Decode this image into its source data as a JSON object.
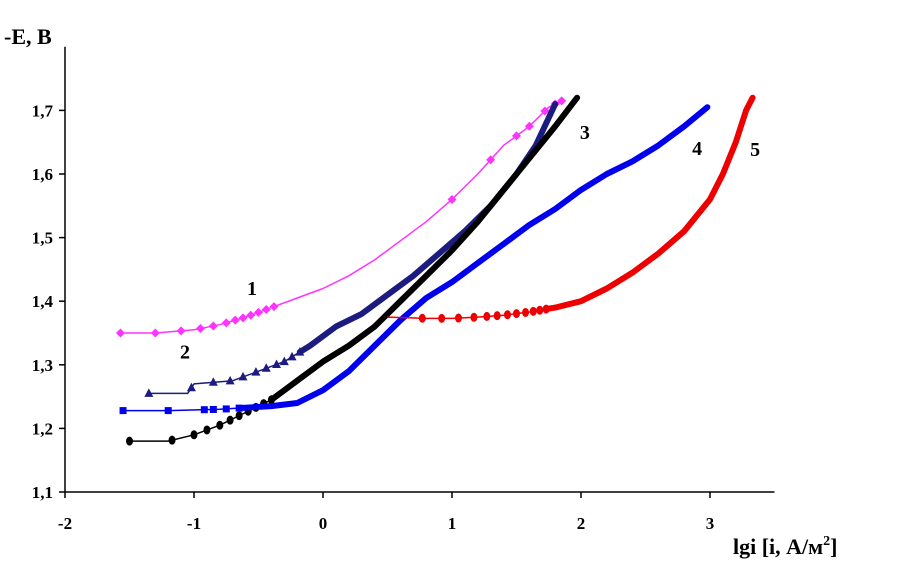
{
  "chart_data": {
    "type": "line",
    "ylabel": "-E, B",
    "xlabel_main": "lgi [i, А/м",
    "xlabel_sup": "2",
    "xlabel_end": "]",
    "xlim": [
      -2,
      3.5
    ],
    "ylim": [
      1.1,
      1.8
    ],
    "xticks": [
      -2,
      -1,
      0,
      1,
      2,
      3
    ],
    "xtick_labels": [
      "-2",
      "-1",
      "0",
      "1",
      "2",
      "3"
    ],
    "yticks": [
      1.1,
      1.2,
      1.3,
      1.4,
      1.5,
      1.6,
      1.7
    ],
    "ytick_labels": [
      "1,1",
      "1,2",
      "1,3",
      "1,4",
      "1,5",
      "1,6",
      "1,7"
    ],
    "grid": false,
    "series": [
      {
        "name": "1",
        "color": "#ff33ff",
        "marker": "diamond",
        "label_at": [
          -0.55,
          1.41
        ],
        "points": [
          [
            -1.57,
            1.35
          ],
          [
            -1.3,
            1.35
          ],
          [
            -1.0,
            1.355
          ],
          [
            -0.8,
            1.363
          ],
          [
            -0.6,
            1.375
          ],
          [
            -0.4,
            1.39
          ],
          [
            -0.2,
            1.405
          ],
          [
            0.0,
            1.42
          ],
          [
            0.2,
            1.44
          ],
          [
            0.4,
            1.465
          ],
          [
            0.6,
            1.495
          ],
          [
            0.8,
            1.525
          ],
          [
            1.0,
            1.56
          ],
          [
            1.2,
            1.6
          ],
          [
            1.4,
            1.645
          ],
          [
            1.6,
            1.675
          ],
          [
            1.75,
            1.705
          ],
          [
            1.85,
            1.715
          ]
        ],
        "marker_x": [
          -1.57,
          -1.3,
          -1.1,
          -0.95,
          -0.85,
          -0.75,
          -0.68,
          -0.62,
          -0.56,
          -0.5,
          -0.44,
          -0.38,
          1.0,
          1.3,
          1.5,
          1.6,
          1.72,
          1.8,
          1.85
        ]
      },
      {
        "name": "2",
        "color": "#1c1c80",
        "marker": "triangle",
        "label_at": [
          -1.07,
          1.31
        ],
        "points": [
          [
            -1.35,
            1.255
          ],
          [
            -1.05,
            1.255
          ],
          [
            -1.0,
            1.27
          ],
          [
            -0.7,
            1.275
          ],
          [
            -0.5,
            1.29
          ],
          [
            -0.3,
            1.305
          ],
          [
            -0.1,
            1.33
          ],
          [
            0.1,
            1.36
          ],
          [
            0.3,
            1.38
          ],
          [
            0.5,
            1.41
          ],
          [
            0.7,
            1.44
          ],
          [
            0.9,
            1.475
          ],
          [
            1.1,
            1.51
          ],
          [
            1.3,
            1.55
          ],
          [
            1.5,
            1.6
          ],
          [
            1.65,
            1.645
          ],
          [
            1.8,
            1.71
          ]
        ],
        "marker_x": [
          -1.35,
          -1.02,
          -0.85,
          -0.72,
          -0.62,
          -0.52,
          -0.44,
          -0.36,
          -0.3,
          -0.24,
          -0.18
        ]
      },
      {
        "name": "3",
        "color": "#000000",
        "marker": "circle",
        "label_at": [
          2.03,
          1.655
        ],
        "points": [
          [
            -1.5,
            1.18
          ],
          [
            -1.2,
            1.18
          ],
          [
            -1.0,
            1.19
          ],
          [
            -0.8,
            1.205
          ],
          [
            -0.6,
            1.225
          ],
          [
            -0.4,
            1.245
          ],
          [
            -0.2,
            1.275
          ],
          [
            0.0,
            1.305
          ],
          [
            0.2,
            1.33
          ],
          [
            0.4,
            1.36
          ],
          [
            0.6,
            1.4
          ],
          [
            0.8,
            1.44
          ],
          [
            1.0,
            1.48
          ],
          [
            1.2,
            1.525
          ],
          [
            1.4,
            1.575
          ],
          [
            1.6,
            1.625
          ],
          [
            1.8,
            1.675
          ],
          [
            1.97,
            1.72
          ]
        ],
        "marker_x": [
          -1.5,
          -1.17,
          -1.0,
          -0.9,
          -0.8,
          -0.72,
          -0.65,
          -0.58,
          -0.52,
          -0.46,
          -0.4
        ]
      },
      {
        "name": "4",
        "color": "#0000ee",
        "marker": "square",
        "label_at": [
          2.9,
          1.63
        ],
        "points": [
          [
            -1.55,
            1.228
          ],
          [
            -1.2,
            1.228
          ],
          [
            -0.8,
            1.23
          ],
          [
            -0.4,
            1.235
          ],
          [
            -0.2,
            1.24
          ],
          [
            0.0,
            1.26
          ],
          [
            0.2,
            1.29
          ],
          [
            0.4,
            1.33
          ],
          [
            0.6,
            1.37
          ],
          [
            0.8,
            1.405
          ],
          [
            1.0,
            1.43
          ],
          [
            1.2,
            1.46
          ],
          [
            1.4,
            1.49
          ],
          [
            1.6,
            1.52
          ],
          [
            1.8,
            1.545
          ],
          [
            2.0,
            1.575
          ],
          [
            2.2,
            1.6
          ],
          [
            2.4,
            1.62
          ],
          [
            2.6,
            1.645
          ],
          [
            2.8,
            1.675
          ],
          [
            2.98,
            1.705
          ]
        ],
        "marker_x": [
          -1.55,
          -1.2,
          -0.92,
          -0.85,
          -0.75,
          -0.65
        ]
      },
      {
        "name": "5",
        "color": "#ee0000",
        "marker": "circle",
        "label_at": [
          3.35,
          1.628
        ],
        "points": [
          [
            0.5,
            1.375
          ],
          [
            0.8,
            1.373
          ],
          [
            1.0,
            1.373
          ],
          [
            1.2,
            1.375
          ],
          [
            1.4,
            1.378
          ],
          [
            1.6,
            1.383
          ],
          [
            1.8,
            1.39
          ],
          [
            2.0,
            1.4
          ],
          [
            2.2,
            1.42
          ],
          [
            2.4,
            1.445
          ],
          [
            2.6,
            1.475
          ],
          [
            2.8,
            1.51
          ],
          [
            3.0,
            1.56
          ],
          [
            3.1,
            1.6
          ],
          [
            3.2,
            1.65
          ],
          [
            3.28,
            1.7
          ],
          [
            3.33,
            1.72
          ]
        ],
        "marker_x": [
          0.77,
          0.92,
          1.05,
          1.17,
          1.27,
          1.35,
          1.43,
          1.5,
          1.57,
          1.63,
          1.68,
          1.73
        ]
      }
    ]
  }
}
